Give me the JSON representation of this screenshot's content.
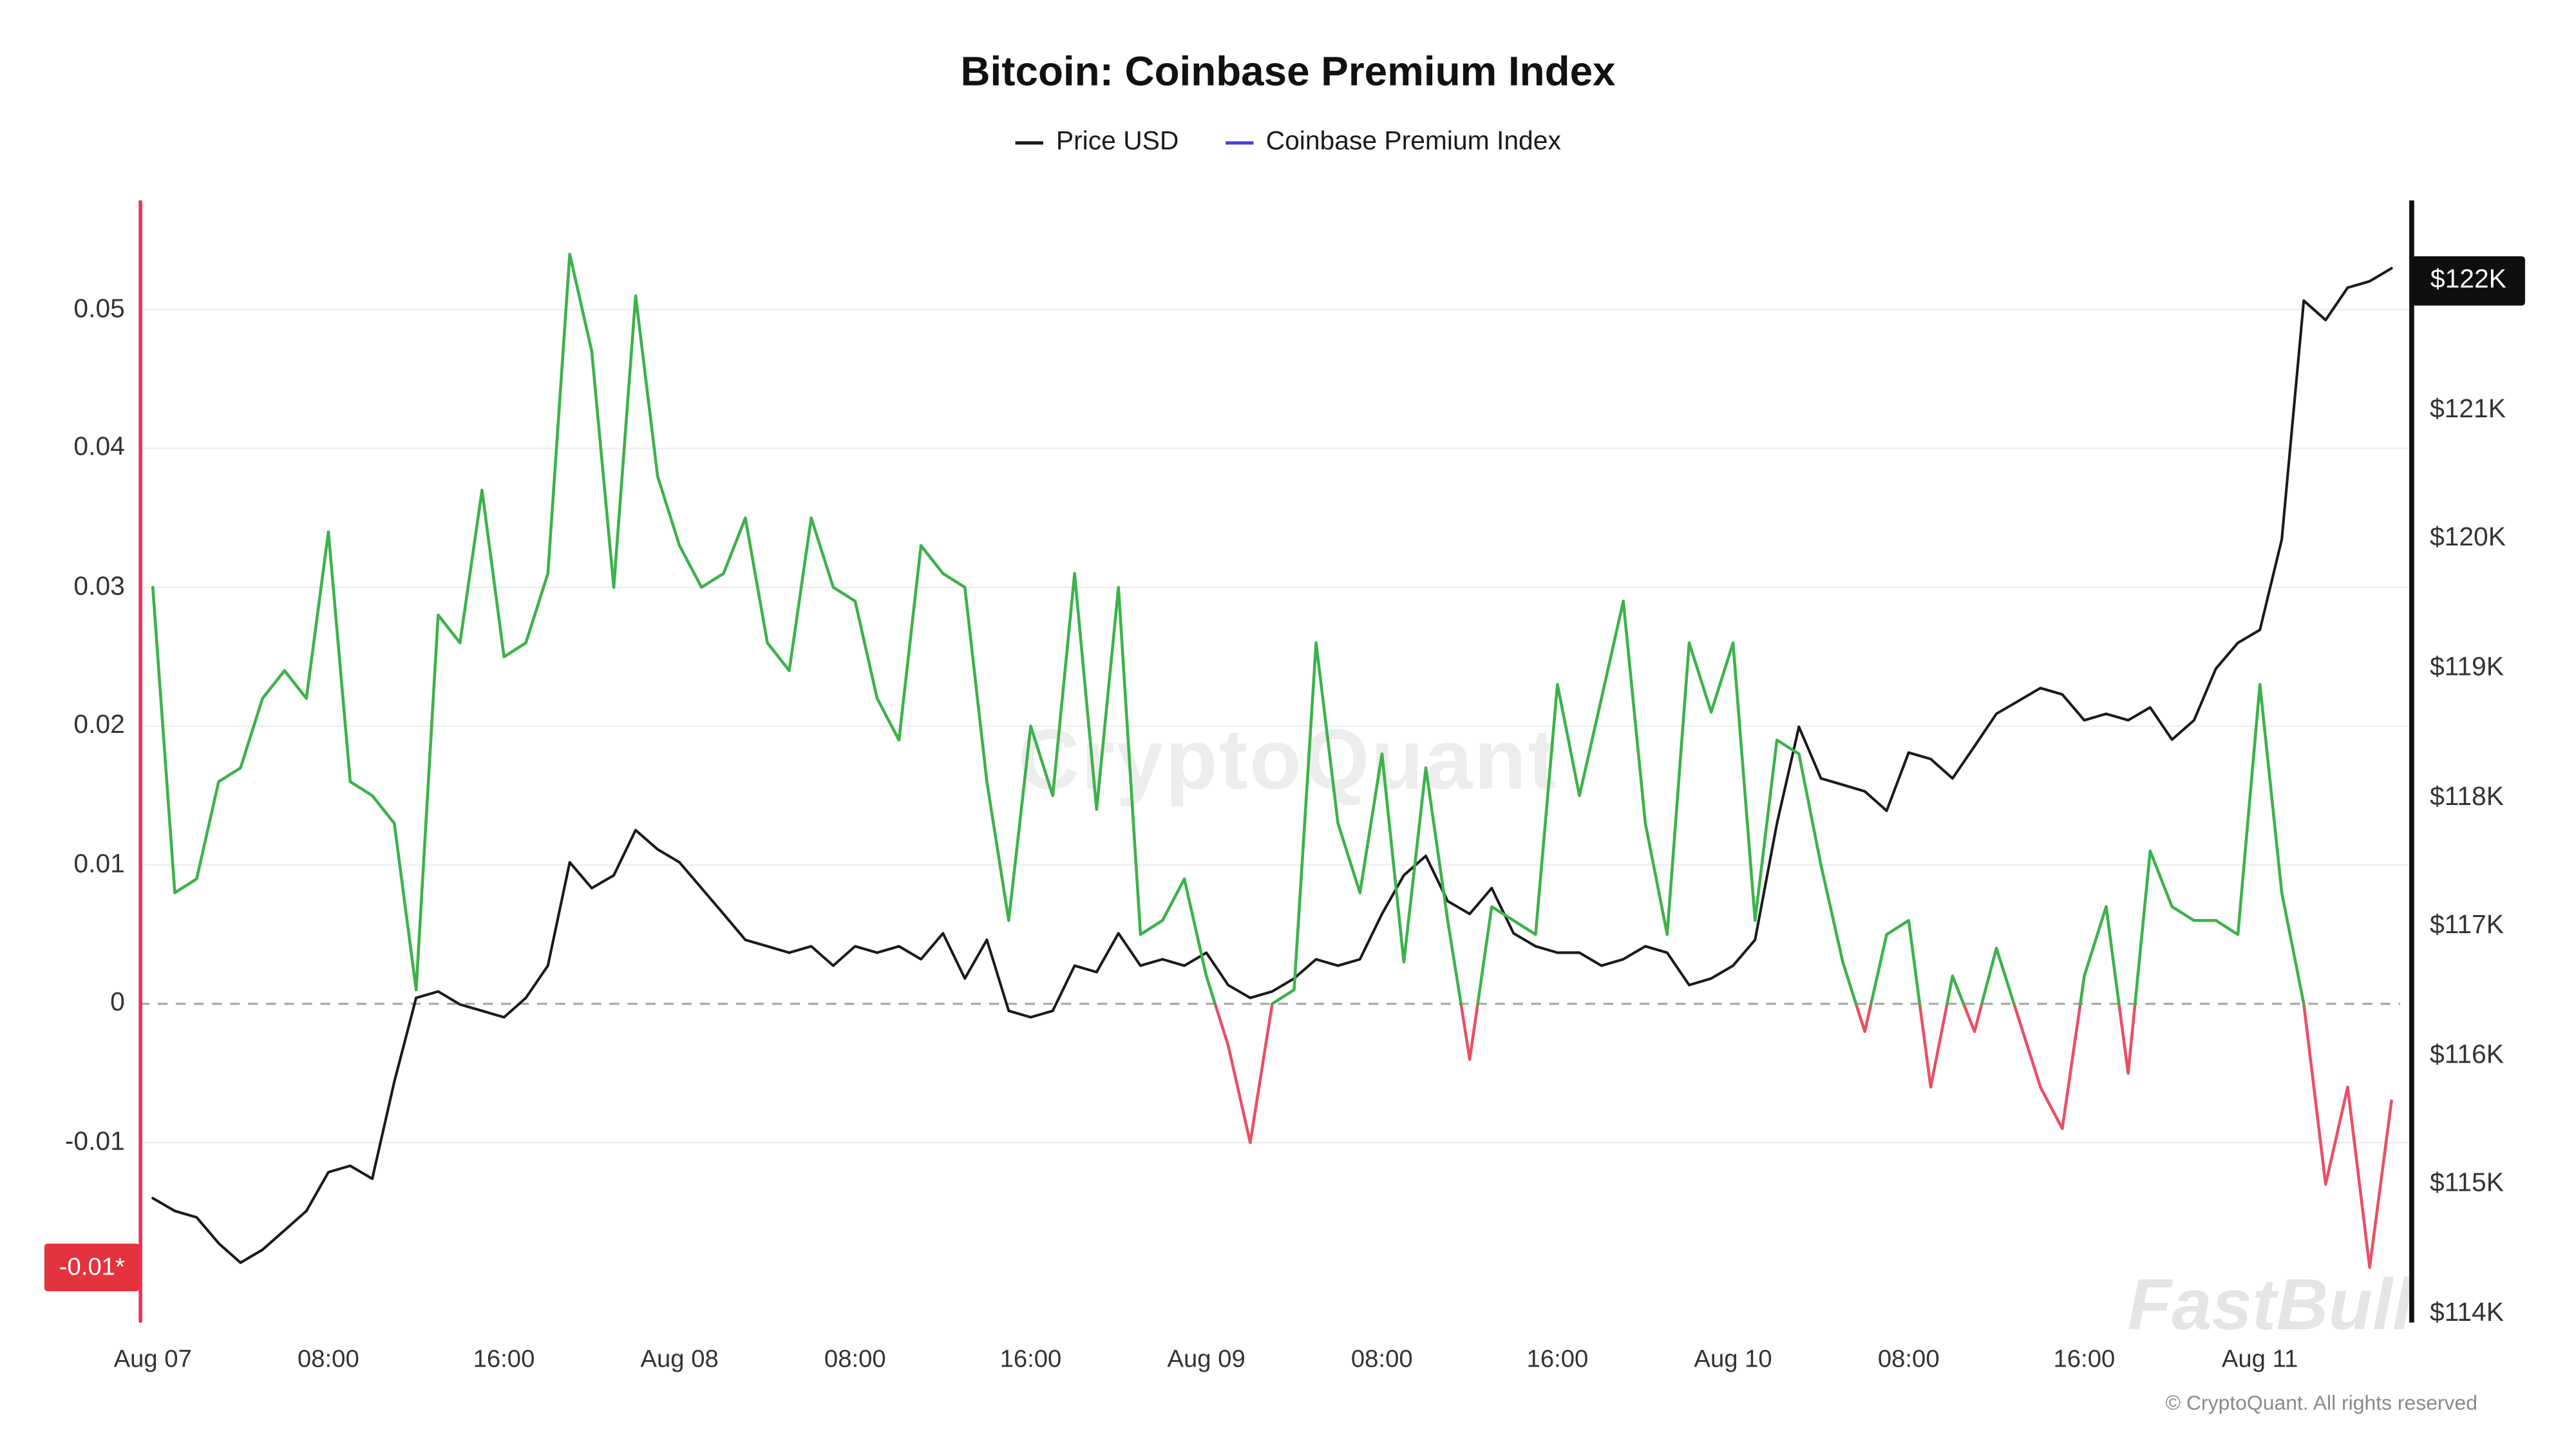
{
  "title": "Bitcoin: Coinbase Premium Index",
  "legend": {
    "items": [
      {
        "label": "Price USD",
        "color": "#1a1a1a"
      },
      {
        "label": "Coinbase Premium Index",
        "color": "#4b40dd"
      }
    ]
  },
  "badges": {
    "premium_current": "-0.01*",
    "price_current": "$122K"
  },
  "watermarks": {
    "center": "CryptoQuant",
    "corner": "FastBull"
  },
  "copyright": "© CryptoQuant. All rights reserved",
  "axes": {
    "left_ticks": [
      {
        "label": "0.05",
        "value": 0.05
      },
      {
        "label": "0.04",
        "value": 0.04
      },
      {
        "label": "0.03",
        "value": 0.03
      },
      {
        "label": "0.02",
        "value": 0.02
      },
      {
        "label": "0.01",
        "value": 0.01
      },
      {
        "label": "0",
        "value": 0
      },
      {
        "label": "-0.01",
        "value": -0.01
      }
    ],
    "right_ticks": [
      {
        "label": "$121K",
        "value": 121
      },
      {
        "label": "$120K",
        "value": 120
      },
      {
        "label": "$119K",
        "value": 119
      },
      {
        "label": "$118K",
        "value": 118
      },
      {
        "label": "$117K",
        "value": 117
      },
      {
        "label": "$116K",
        "value": 116
      },
      {
        "label": "$115K",
        "value": 115
      },
      {
        "label": "$114K",
        "value": 114
      }
    ],
    "x_ticks": [
      {
        "label": "Aug 07",
        "hour": 0
      },
      {
        "label": "08:00",
        "hour": 8
      },
      {
        "label": "16:00",
        "hour": 16
      },
      {
        "label": "Aug 08",
        "hour": 24
      },
      {
        "label": "08:00",
        "hour": 32
      },
      {
        "label": "16:00",
        "hour": 40
      },
      {
        "label": "Aug 09",
        "hour": 48
      },
      {
        "label": "08:00",
        "hour": 56
      },
      {
        "label": "16:00",
        "hour": 64
      },
      {
        "label": "Aug 10",
        "hour": 72
      },
      {
        "label": "08:00",
        "hour": 80
      },
      {
        "label": "16:00",
        "hour": 88
      },
      {
        "label": "Aug 11",
        "hour": 96
      }
    ]
  },
  "chart_data": {
    "type": "line",
    "title": "Bitcoin: Coinbase Premium Index",
    "x_unit": "hours since Aug 07 00:00",
    "x_start_hour": 0,
    "x_step_hours": 1,
    "zero_line_dashed": true,
    "left_axis": {
      "ticks": [
        0.05,
        0.04,
        0.03,
        0.02,
        0.01,
        0,
        -0.01
      ],
      "range": [
        -0.022,
        0.058
      ]
    },
    "right_axis": {
      "ticks": [
        122,
        121,
        120,
        119,
        118,
        117,
        116,
        115,
        114
      ],
      "range": [
        113.9,
        122.7
      ],
      "unit": "USD thousands"
    },
    "series": [
      {
        "name": "Price USD",
        "axis": "right",
        "color": "#1a1a1a",
        "values": [
          114.9,
          114.8,
          114.75,
          114.55,
          114.4,
          114.5,
          114.65,
          114.8,
          115.1,
          115.15,
          115.05,
          115.8,
          116.45,
          116.5,
          116.4,
          116.35,
          116.3,
          116.45,
          116.7,
          117.5,
          117.3,
          117.4,
          117.75,
          117.6,
          117.5,
          117.3,
          117.1,
          116.9,
          116.85,
          116.8,
          116.85,
          116.7,
          116.85,
          116.8,
          116.85,
          116.75,
          116.95,
          116.6,
          116.9,
          116.35,
          116.3,
          116.35,
          116.7,
          116.65,
          116.95,
          116.7,
          116.75,
          116.7,
          116.8,
          116.55,
          116.45,
          116.5,
          116.6,
          116.75,
          116.7,
          116.75,
          117.1,
          117.4,
          117.55,
          117.2,
          117.1,
          117.3,
          116.95,
          116.85,
          116.8,
          116.8,
          116.7,
          116.75,
          116.85,
          116.8,
          116.55,
          116.6,
          116.7,
          116.9,
          117.8,
          118.55,
          118.15,
          118.1,
          118.05,
          117.9,
          118.35,
          118.3,
          118.15,
          118.4,
          118.65,
          118.75,
          118.85,
          118.8,
          118.6,
          118.65,
          118.6,
          118.7,
          118.45,
          118.6,
          119.0,
          119.2,
          119.3,
          120.0,
          121.85,
          121.7,
          121.95,
          122.0,
          122.1
        ]
      },
      {
        "name": "Coinbase Premium Index",
        "axis": "left",
        "positive_color": "#3cb24a",
        "negative_color": "#e94f63",
        "values": [
          0.03,
          0.008,
          0.009,
          0.016,
          0.017,
          0.022,
          0.024,
          0.022,
          0.034,
          0.016,
          0.015,
          0.013,
          0.001,
          0.028,
          0.026,
          0.037,
          0.025,
          0.026,
          0.031,
          0.054,
          0.047,
          0.03,
          0.051,
          0.038,
          0.033,
          0.03,
          0.031,
          0.035,
          0.026,
          0.024,
          0.035,
          0.03,
          0.029,
          0.022,
          0.019,
          0.033,
          0.031,
          0.03,
          0.016,
          0.006,
          0.02,
          0.015,
          0.031,
          0.014,
          0.03,
          0.005,
          0.006,
          0.009,
          0.002,
          -0.003,
          -0.01,
          0.0,
          0.001,
          0.026,
          0.013,
          0.008,
          0.018,
          0.003,
          0.017,
          0.006,
          -0.004,
          0.007,
          0.006,
          0.005,
          0.023,
          0.015,
          0.022,
          0.029,
          0.013,
          0.005,
          0.026,
          0.021,
          0.026,
          0.006,
          0.019,
          0.018,
          0.01,
          0.003,
          -0.002,
          0.005,
          0.006,
          -0.006,
          0.002,
          -0.002,
          0.004,
          -0.001,
          -0.006,
          -0.009,
          0.002,
          0.007,
          -0.005,
          0.011,
          0.007,
          0.006,
          0.006,
          0.005,
          0.023,
          0.008,
          0.0,
          -0.013,
          -0.006,
          -0.019,
          -0.007
        ]
      }
    ]
  }
}
